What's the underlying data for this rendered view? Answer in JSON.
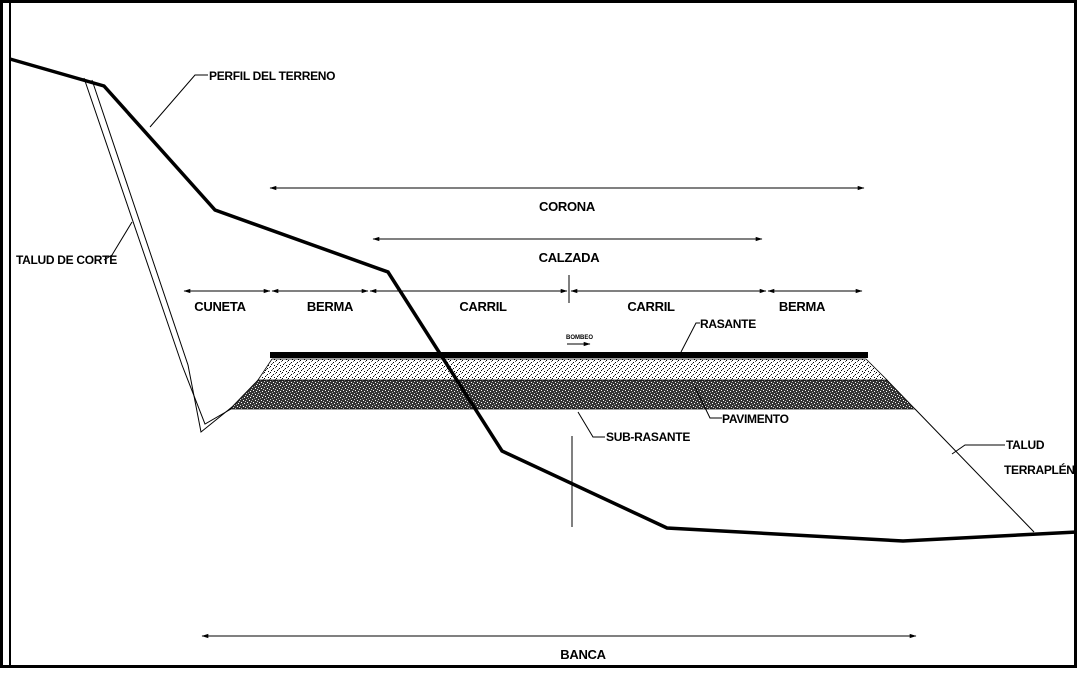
{
  "dimensions": {
    "corona": "CORONA",
    "calzada": "CALZADA",
    "cuneta": "CUNETA",
    "berma_left": "BERMA",
    "carril_left": "CARRIL",
    "carril_right": "CARRIL",
    "berma_right": "BERMA",
    "banca": "BANCA"
  },
  "callouts": {
    "perfil_del_terreno": "PERFIL DEL TERRENO",
    "talud_de_corte": "TALUD DE CORTE",
    "rasante": "RASANTE",
    "bombeo": "BOMBEO",
    "pavimento": "PAVIMENTO",
    "sub_rasante": "SUB-RASANTE",
    "talud_line1": "TALUD",
    "talud_line2": "TERRAPLÉN"
  }
}
